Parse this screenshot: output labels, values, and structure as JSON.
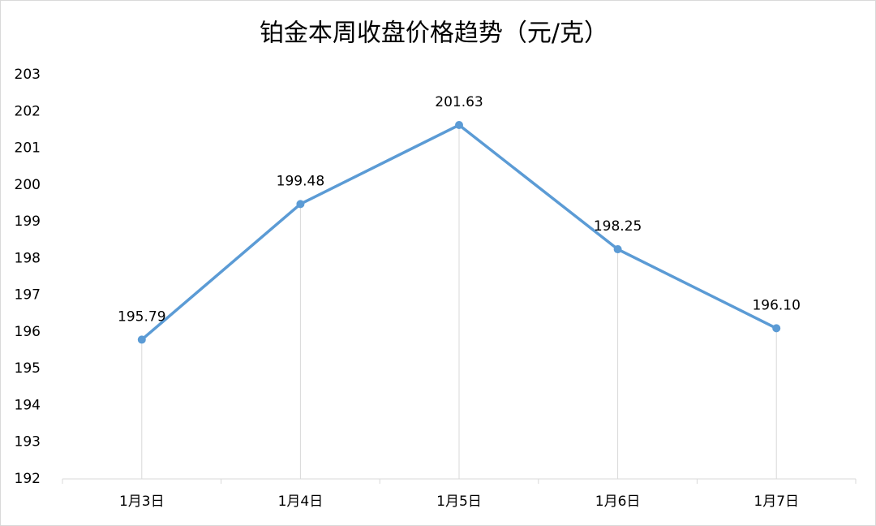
{
  "chart_data": {
    "type": "line",
    "title": "铂金本周收盘价格趋势（元/克）",
    "categories": [
      "1月3日",
      "1月4日",
      "1月5日",
      "1月6日",
      "1月7日"
    ],
    "values": [
      195.79,
      199.48,
      201.63,
      198.25,
      196.1
    ],
    "value_labels": [
      "195.79",
      "199.48",
      "201.63",
      "198.25",
      "196.10"
    ],
    "color": "#5b9bd5",
    "ylim": [
      192,
      203
    ],
    "yticks": [
      192,
      193,
      194,
      195,
      196,
      197,
      198,
      199,
      200,
      201,
      202,
      203
    ],
    "drop_lines": true
  }
}
